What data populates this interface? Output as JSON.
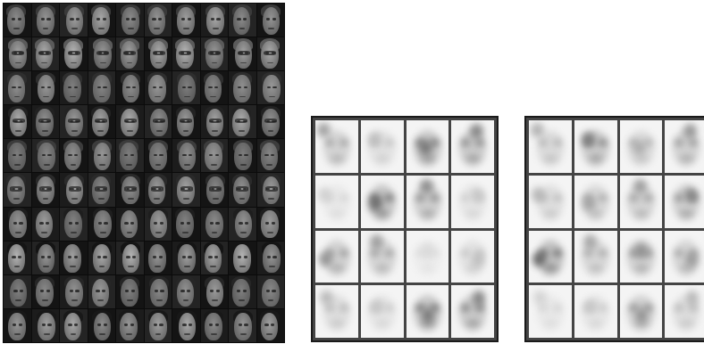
{
  "figure": {
    "face_grid": {
      "rows": 10,
      "cols": 10,
      "row_subjects": [
        {
          "skin": "#9a9a9a",
          "hair": "#3a3a3a",
          "glasses": false
        },
        {
          "skin": "#a8a8a8",
          "hair": "#5a5a5a",
          "glasses": true
        },
        {
          "skin": "#8c8c8c",
          "hair": "#2e2e2e",
          "glasses": false
        },
        {
          "skin": "#a0a0a0",
          "hair": "#222222",
          "glasses": true
        },
        {
          "skin": "#8a8a8a",
          "hair": "#3c3c3c",
          "glasses": false
        },
        {
          "skin": "#969696",
          "hair": "#2a2a2a",
          "glasses": true
        },
        {
          "skin": "#909090",
          "hair": "#1e1e1e",
          "glasses": false
        },
        {
          "skin": "#a6a6a6",
          "hair": "#141414",
          "glasses": false
        },
        {
          "skin": "#8e8e8e",
          "hair": "#262626",
          "glasses": false
        },
        {
          "skin": "#9c9c9c",
          "hair": "#181818",
          "glasses": false
        }
      ]
    },
    "basis_panels": [
      {
        "name": "basis-images-panel-1",
        "cells": [
          {
            "intensity": 0.55
          },
          {
            "intensity": 0.35
          },
          {
            "intensity": 0.75
          },
          {
            "intensity": 0.7
          },
          {
            "intensity": 0.25
          },
          {
            "intensity": 0.8
          },
          {
            "intensity": 0.65
          },
          {
            "intensity": 0.3
          },
          {
            "intensity": 0.6
          },
          {
            "intensity": 0.55
          },
          {
            "intensity": 0.2
          },
          {
            "intensity": 0.35
          },
          {
            "intensity": 0.4
          },
          {
            "intensity": 0.3
          },
          {
            "intensity": 0.75
          },
          {
            "intensity": 0.7
          }
        ]
      },
      {
        "name": "basis-images-panel-2",
        "cells": [
          {
            "intensity": 0.45
          },
          {
            "intensity": 0.7
          },
          {
            "intensity": 0.45
          },
          {
            "intensity": 0.6
          },
          {
            "intensity": 0.4
          },
          {
            "intensity": 0.5
          },
          {
            "intensity": 0.55
          },
          {
            "intensity": 0.65
          },
          {
            "intensity": 0.85
          },
          {
            "intensity": 0.5
          },
          {
            "intensity": 0.6
          },
          {
            "intensity": 0.55
          },
          {
            "intensity": 0.25
          },
          {
            "intensity": 0.3
          },
          {
            "intensity": 0.6
          },
          {
            "intensity": 0.4
          }
        ]
      }
    ]
  }
}
